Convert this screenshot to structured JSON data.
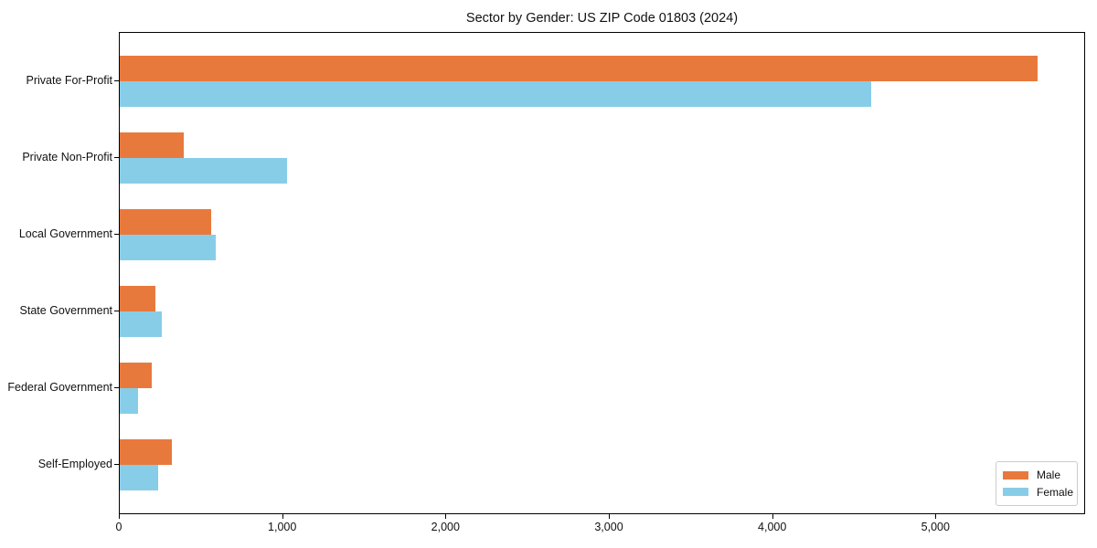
{
  "chart_data": {
    "type": "bar",
    "orientation": "horizontal",
    "title": "Sector by Gender: US ZIP Code 01803 (2024)",
    "categories": [
      "Private For-Profit",
      "Private Non-Profit",
      "Local Government",
      "State Government",
      "Federal Government",
      "Self-Employed"
    ],
    "series": [
      {
        "name": "Male",
        "color": "#E8793C",
        "values": [
          5620,
          390,
          560,
          220,
          195,
          320
        ]
      },
      {
        "name": "Female",
        "color": "#87CDE8",
        "values": [
          4600,
          1025,
          590,
          255,
          110,
          235
        ]
      }
    ],
    "xlabel": "",
    "ylabel": "",
    "xlim": [
      0,
      5916
    ],
    "x_ticks": [
      {
        "value": 0,
        "label": "0"
      },
      {
        "value": 1000,
        "label": "1,000"
      },
      {
        "value": 2000,
        "label": "2,000"
      },
      {
        "value": 3000,
        "label": "3,000"
      },
      {
        "value": 4000,
        "label": "4,000"
      },
      {
        "value": 5000,
        "label": "5,000"
      }
    ],
    "grid": false,
    "legend_position": "lower right",
    "plot_border_color": "#000000",
    "background_color": "#ffffff"
  }
}
